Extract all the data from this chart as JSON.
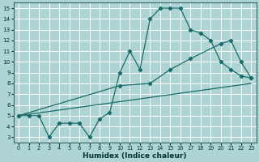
{
  "xlabel": "Humidex (Indice chaleur)",
  "xlim": [
    -0.5,
    23.5
  ],
  "ylim": [
    2.5,
    15.5
  ],
  "yticks": [
    3,
    4,
    5,
    6,
    7,
    8,
    9,
    10,
    11,
    12,
    13,
    14,
    15
  ],
  "xticks": [
    0,
    1,
    2,
    3,
    4,
    5,
    6,
    7,
    8,
    9,
    10,
    11,
    12,
    13,
    14,
    15,
    16,
    17,
    18,
    19,
    20,
    21,
    22,
    23
  ],
  "bg_color": "#aed4d4",
  "line_color": "#1a6b6b",
  "grid_color": "#ffffff",
  "line1_x": [
    0,
    1,
    2,
    3,
    4,
    5,
    6,
    7,
    8,
    9,
    10,
    11,
    12,
    13,
    14,
    15,
    16,
    17,
    18,
    19,
    20,
    21,
    22,
    23
  ],
  "line1_y": [
    5.0,
    5.0,
    5.0,
    3.0,
    4.3,
    4.3,
    4.3,
    3.0,
    4.7,
    5.3,
    9.0,
    11.0,
    9.3,
    14.0,
    15.0,
    15.0,
    15.0,
    13.0,
    12.7,
    12.0,
    10.0,
    9.3,
    8.7,
    8.5
  ],
  "line2_x": [
    0,
    10,
    13,
    15,
    17,
    20,
    21,
    22,
    23
  ],
  "line2_y": [
    5.0,
    7.8,
    8.0,
    9.3,
    10.3,
    11.7,
    12.0,
    10.0,
    8.5
  ],
  "line3_x": [
    0,
    23
  ],
  "line3_y": [
    5.0,
    8.0
  ]
}
